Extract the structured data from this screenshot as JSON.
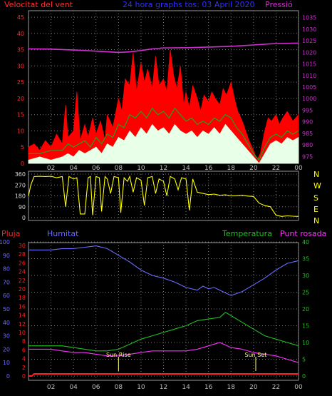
{
  "colors": {
    "background": "#000000",
    "frame": "#9a9a9a",
    "grid": "#7a7a7a",
    "wind_axis": "#ff3030",
    "pressure_axis": "#d030d0",
    "title": "#3030ff",
    "direction": "#ffff00",
    "rain": "#ff2020",
    "humidity": "#6a6aff",
    "temperature": "#20c020",
    "dewpoint": "#ff30ff",
    "gust": "#ff0000",
    "wind_avg": "#20a020",
    "wind_min": "#e8ffe8",
    "sun_text": "#ffff80"
  },
  "chart_data": [
    {
      "type": "area",
      "name": "wind-pressure",
      "title": "24 hora graphs tos: 03 April 2020",
      "left_label": "Velocitat del vent",
      "right_label": "Pressió",
      "y_left_ticks": [
        0,
        5,
        10,
        15,
        20,
        25,
        30,
        35,
        40,
        45
      ],
      "y_right_ticks": [
        975,
        980,
        985,
        990,
        995,
        1000,
        1005,
        1010,
        1015,
        1020,
        1025,
        1030,
        1035
      ],
      "x_ticks": [
        "02",
        "04",
        "06",
        "08",
        "10",
        "12",
        "14",
        "16",
        "18",
        "20",
        "22",
        "00"
      ],
      "ylim_left": [
        0,
        47
      ],
      "ylim_right": [
        972,
        1038
      ],
      "gust": [
        [
          0,
          5
        ],
        [
          0.5,
          6
        ],
        [
          1,
          4
        ],
        [
          1.5,
          7
        ],
        [
          2,
          5
        ],
        [
          2.5,
          9
        ],
        [
          3,
          6
        ],
        [
          3.3,
          18
        ],
        [
          3.5,
          8
        ],
        [
          4,
          10
        ],
        [
          4.3,
          22
        ],
        [
          4.6,
          7
        ],
        [
          5,
          12
        ],
        [
          5.3,
          8
        ],
        [
          5.7,
          14
        ],
        [
          6,
          9
        ],
        [
          6.4,
          13
        ],
        [
          6.8,
          7
        ],
        [
          7,
          15
        ],
        [
          7.5,
          11
        ],
        [
          8,
          20
        ],
        [
          8.3,
          16
        ],
        [
          8.6,
          26
        ],
        [
          9,
          24
        ],
        [
          9.3,
          34
        ],
        [
          9.6,
          22
        ],
        [
          10,
          31
        ],
        [
          10.3,
          25
        ],
        [
          10.6,
          29
        ],
        [
          11,
          23
        ],
        [
          11.3,
          33
        ],
        [
          11.6,
          24
        ],
        [
          12,
          26
        ],
        [
          12.3,
          22
        ],
        [
          12.6,
          35
        ],
        [
          12.9,
          27
        ],
        [
          13.2,
          23
        ],
        [
          13.5,
          30
        ],
        [
          13.8,
          18
        ],
        [
          14,
          22
        ],
        [
          14.3,
          17
        ],
        [
          14.6,
          24
        ],
        [
          15,
          20
        ],
        [
          15.3,
          16
        ],
        [
          15.6,
          21
        ],
        [
          16,
          19
        ],
        [
          16.3,
          22
        ],
        [
          16.6,
          20
        ],
        [
          17,
          18
        ],
        [
          17.3,
          23
        ],
        [
          17.6,
          21
        ],
        [
          18,
          25
        ],
        [
          18.3,
          20
        ],
        [
          18.6,
          16
        ],
        [
          19,
          13
        ],
        [
          19.3,
          10
        ],
        [
          19.6,
          7
        ],
        [
          20,
          4
        ],
        [
          20.3,
          1
        ],
        [
          20.6,
          3
        ],
        [
          21,
          10
        ],
        [
          21.3,
          14
        ],
        [
          21.6,
          13
        ],
        [
          22,
          15
        ],
        [
          22.3,
          12
        ],
        [
          22.6,
          14
        ],
        [
          23,
          16
        ],
        [
          23.5,
          13
        ],
        [
          24,
          15
        ]
      ],
      "average": [
        [
          0,
          3
        ],
        [
          1,
          3
        ],
        [
          2,
          4
        ],
        [
          3,
          4
        ],
        [
          3.5,
          6
        ],
        [
          4,
          5
        ],
        [
          4.5,
          6
        ],
        [
          5,
          7
        ],
        [
          5.5,
          5
        ],
        [
          6,
          8
        ],
        [
          6.5,
          6
        ],
        [
          7,
          9
        ],
        [
          7.5,
          8
        ],
        [
          8,
          12
        ],
        [
          8.5,
          11
        ],
        [
          9,
          15
        ],
        [
          9.5,
          14
        ],
        [
          10,
          16
        ],
        [
          10.5,
          14
        ],
        [
          11,
          17
        ],
        [
          11.5,
          15
        ],
        [
          12,
          16
        ],
        [
          12.5,
          14
        ],
        [
          13,
          17
        ],
        [
          13.5,
          15
        ],
        [
          14,
          13
        ],
        [
          14.5,
          14
        ],
        [
          15,
          12
        ],
        [
          15.5,
          13
        ],
        [
          16,
          12
        ],
        [
          16.5,
          14
        ],
        [
          17,
          13
        ],
        [
          17.5,
          15
        ],
        [
          18,
          14
        ],
        [
          18.5,
          11
        ],
        [
          19,
          9
        ],
        [
          19.5,
          6
        ],
        [
          20,
          3
        ],
        [
          20.5,
          1
        ],
        [
          21,
          5
        ],
        [
          21.5,
          8
        ],
        [
          22,
          9
        ],
        [
          22.5,
          8
        ],
        [
          23,
          10
        ],
        [
          23.5,
          9
        ],
        [
          24,
          10
        ]
      ],
      "minimum": [
        [
          0,
          1
        ],
        [
          1,
          2
        ],
        [
          2,
          1
        ],
        [
          3,
          2
        ],
        [
          3.5,
          3
        ],
        [
          4,
          2
        ],
        [
          4.5,
          4
        ],
        [
          5,
          3
        ],
        [
          5.5,
          4
        ],
        [
          6,
          5
        ],
        [
          6.5,
          3
        ],
        [
          7,
          6
        ],
        [
          7.5,
          5
        ],
        [
          8,
          8
        ],
        [
          8.5,
          7
        ],
        [
          9,
          10
        ],
        [
          9.5,
          8
        ],
        [
          10,
          11
        ],
        [
          10.5,
          9
        ],
        [
          11,
          12
        ],
        [
          11.5,
          10
        ],
        [
          12,
          11
        ],
        [
          12.5,
          9
        ],
        [
          13,
          12
        ],
        [
          13.5,
          10
        ],
        [
          14,
          9
        ],
        [
          14.5,
          10
        ],
        [
          15,
          8
        ],
        [
          15.5,
          10
        ],
        [
          16,
          9
        ],
        [
          16.5,
          11
        ],
        [
          17,
          9
        ],
        [
          17.5,
          12
        ],
        [
          18,
          10
        ],
        [
          18.5,
          8
        ],
        [
          19,
          6
        ],
        [
          19.5,
          4
        ],
        [
          20,
          2
        ],
        [
          20.5,
          0
        ],
        [
          21,
          3
        ],
        [
          21.5,
          6
        ],
        [
          22,
          7
        ],
        [
          22.5,
          6
        ],
        [
          23,
          8
        ],
        [
          23.5,
          7
        ],
        [
          24,
          8
        ]
      ],
      "pressure": [
        [
          0,
          1021.5
        ],
        [
          2,
          1021.4
        ],
        [
          4,
          1021.0
        ],
        [
          6,
          1020.5
        ],
        [
          8,
          1020.0
        ],
        [
          9,
          1020.2
        ],
        [
          10,
          1020.8
        ],
        [
          11,
          1021.5
        ],
        [
          12,
          1021.9
        ],
        [
          14,
          1022.0
        ],
        [
          16,
          1022.3
        ],
        [
          18,
          1022.6
        ],
        [
          20,
          1023.2
        ],
        [
          22,
          1023.8
        ],
        [
          24,
          1024.0
        ]
      ]
    },
    {
      "type": "line",
      "name": "wind-direction",
      "y_ticks": [
        0,
        90,
        180,
        270,
        360
      ],
      "y_right_labels": [
        "N",
        "W",
        "S",
        "E",
        "N"
      ],
      "ylim": [
        0,
        360
      ],
      "series": [
        [
          0,
          180
        ],
        [
          0.2,
          270
        ],
        [
          0.5,
          340
        ],
        [
          1,
          342
        ],
        [
          1.5,
          340
        ],
        [
          2,
          342
        ],
        [
          2.5,
          330
        ],
        [
          3,
          340
        ],
        [
          3.3,
          90
        ],
        [
          3.6,
          340
        ],
        [
          4,
          320
        ],
        [
          4.3,
          330
        ],
        [
          4.6,
          30
        ],
        [
          5,
          30
        ],
        [
          5.3,
          330
        ],
        [
          5.5,
          340
        ],
        [
          5.7,
          20
        ],
        [
          6,
          340
        ],
        [
          6.3,
          330
        ],
        [
          6.5,
          50
        ],
        [
          6.8,
          340
        ],
        [
          7,
          320
        ],
        [
          7.3,
          200
        ],
        [
          7.6,
          340
        ],
        [
          8,
          330
        ],
        [
          8.2,
          40
        ],
        [
          8.5,
          330
        ],
        [
          8.8,
          300
        ],
        [
          9,
          340
        ],
        [
          9.3,
          210
        ],
        [
          9.6,
          330
        ],
        [
          10,
          310
        ],
        [
          10.3,
          100
        ],
        [
          10.6,
          330
        ],
        [
          11,
          340
        ],
        [
          11.3,
          200
        ],
        [
          11.6,
          320
        ],
        [
          12,
          300
        ],
        [
          12.3,
          180
        ],
        [
          12.6,
          340
        ],
        [
          13,
          320
        ],
        [
          13.3,
          230
        ],
        [
          13.6,
          330
        ],
        [
          14,
          320
        ],
        [
          14.3,
          60
        ],
        [
          14.6,
          320
        ],
        [
          15,
          210
        ],
        [
          15.5,
          200
        ],
        [
          16,
          190
        ],
        [
          16.5,
          195
        ],
        [
          17,
          185
        ],
        [
          17.5,
          188
        ],
        [
          18,
          180
        ],
        [
          18.5,
          182
        ],
        [
          19,
          185
        ],
        [
          19.5,
          178
        ],
        [
          20,
          175
        ],
        [
          20.5,
          120
        ],
        [
          21,
          100
        ],
        [
          21.5,
          90
        ],
        [
          22,
          20
        ],
        [
          22.5,
          10
        ],
        [
          23,
          15
        ],
        [
          23.5,
          12
        ],
        [
          24,
          10
        ]
      ]
    },
    {
      "type": "line",
      "name": "rain-humidity-temperature",
      "labels": {
        "rain": "Pluja",
        "humidity": "Humitat",
        "temperature": "Temperatura",
        "dewpoint": "Punt rosada"
      },
      "y_left_rain_ticks": [
        0,
        2,
        4,
        6,
        8,
        10,
        12,
        14,
        16,
        18,
        20,
        22,
        24,
        26,
        28,
        30
      ],
      "y_left_hum_ticks": [
        0,
        10,
        20,
        30,
        40,
        50,
        60,
        70,
        80,
        90,
        100
      ],
      "y_right_ticks": [
        0,
        5,
        10,
        15,
        20,
        25,
        30,
        35,
        40
      ],
      "x_ticks": [
        "02",
        "04",
        "06",
        "08",
        "10",
        "12",
        "14",
        "16",
        "18",
        "20",
        "22",
        "00"
      ],
      "humidity": [
        [
          0,
          94
        ],
        [
          1,
          94
        ],
        [
          2,
          94
        ],
        [
          3,
          95
        ],
        [
          4,
          95
        ],
        [
          5,
          96
        ],
        [
          6,
          97
        ],
        [
          7,
          95
        ],
        [
          8,
          90
        ],
        [
          9,
          85
        ],
        [
          10,
          79
        ],
        [
          11,
          75
        ],
        [
          12,
          73
        ],
        [
          13,
          70
        ],
        [
          14,
          66
        ],
        [
          15,
          64
        ],
        [
          15.5,
          67
        ],
        [
          16,
          65
        ],
        [
          16.5,
          66
        ],
        [
          17,
          64
        ],
        [
          18,
          60
        ],
        [
          19,
          63
        ],
        [
          20,
          68
        ],
        [
          21,
          73
        ],
        [
          22,
          79
        ],
        [
          23,
          84
        ],
        [
          24,
          86
        ]
      ],
      "temperature": [
        [
          0,
          9
        ],
        [
          1,
          9
        ],
        [
          2,
          9
        ],
        [
          3,
          9
        ],
        [
          4,
          8.5
        ],
        [
          5,
          8
        ],
        [
          6,
          7.5
        ],
        [
          7,
          7.5
        ],
        [
          8,
          8
        ],
        [
          9,
          9.5
        ],
        [
          10,
          11
        ],
        [
          11,
          12
        ],
        [
          12,
          13
        ],
        [
          13,
          14
        ],
        [
          14,
          15
        ],
        [
          15,
          16.5
        ],
        [
          16,
          17
        ],
        [
          17,
          17.5
        ],
        [
          17.5,
          19
        ],
        [
          18,
          18
        ],
        [
          19,
          16
        ],
        [
          20,
          14
        ],
        [
          21,
          12
        ],
        [
          22,
          11
        ],
        [
          23,
          10
        ],
        [
          24,
          9
        ]
      ],
      "dewpoint": [
        [
          0,
          8
        ],
        [
          1,
          8
        ],
        [
          2,
          8
        ],
        [
          3,
          7.5
        ],
        [
          4,
          7
        ],
        [
          5,
          7
        ],
        [
          6,
          6.5
        ],
        [
          7,
          6
        ],
        [
          8,
          6
        ],
        [
          9,
          6.5
        ],
        [
          10,
          7
        ],
        [
          11,
          7.5
        ],
        [
          12,
          7.5
        ],
        [
          13,
          7.5
        ],
        [
          14,
          7.5
        ],
        [
          15,
          8
        ],
        [
          16,
          9
        ],
        [
          17,
          10
        ],
        [
          18,
          8.5
        ],
        [
          19,
          8
        ],
        [
          20,
          7
        ],
        [
          21,
          6.5
        ],
        [
          22,
          6
        ],
        [
          23,
          5
        ],
        [
          24,
          4
        ]
      ],
      "rain": [
        [
          0,
          0
        ],
        [
          0.3,
          0
        ],
        [
          0.5,
          0.5
        ],
        [
          24,
          0.5
        ]
      ],
      "annotations": [
        {
          "text": "Sun Rise",
          "x": 8.0
        },
        {
          "text": "Sun Set",
          "x": 20.2
        }
      ]
    }
  ]
}
